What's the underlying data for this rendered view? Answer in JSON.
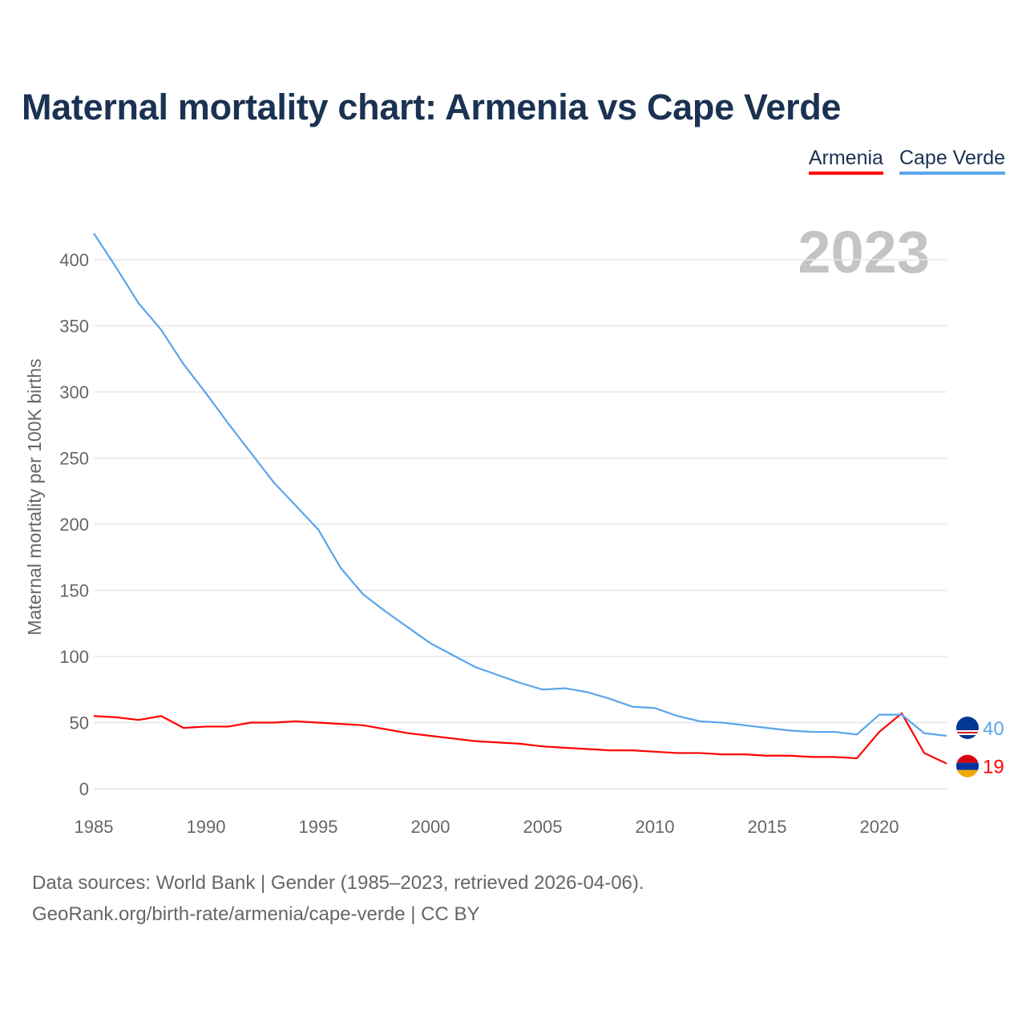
{
  "title": "Maternal mortality chart: Armenia vs Cape Verde",
  "year_label": "2023",
  "footer": {
    "line1": "Data sources: World Bank | Gender (1985–2023, retrieved 2026-04-06).",
    "line2": "GeoRank.org/birth-rate/armenia/cape-verde | CC BY"
  },
  "chart_data": {
    "type": "line",
    "title": "Maternal mortality chart: Armenia vs Cape Verde",
    "xlabel": "",
    "ylabel": "Maternal mortality per 100K births",
    "xlim": [
      1985,
      2023
    ],
    "ylim": [
      0,
      430
    ],
    "grid": true,
    "legend": "top-right",
    "x_ticks": [
      "1985",
      "1990",
      "1995",
      "2000",
      "2005",
      "2010",
      "2015",
      "2020"
    ],
    "y_ticks": [
      "0",
      "50",
      "100",
      "150",
      "200",
      "250",
      "300",
      "350",
      "400"
    ],
    "x": [
      1985,
      1986,
      1987,
      1988,
      1989,
      1990,
      1991,
      1992,
      1993,
      1994,
      1995,
      1996,
      1997,
      1998,
      1999,
      2000,
      2001,
      2002,
      2003,
      2004,
      2005,
      2006,
      2007,
      2008,
      2009,
      2010,
      2011,
      2012,
      2013,
      2014,
      2015,
      2016,
      2017,
      2018,
      2019,
      2020,
      2021,
      2022,
      2023
    ],
    "series": [
      {
        "name": "Armenia",
        "color": "#ff0000",
        "end_label": "19",
        "values": [
          55,
          54,
          52,
          55,
          46,
          47,
          47,
          50,
          50,
          51,
          50,
          49,
          48,
          45,
          42,
          40,
          38,
          36,
          35,
          34,
          32,
          31,
          30,
          29,
          29,
          28,
          27,
          27,
          26,
          26,
          25,
          25,
          24,
          24,
          23,
          43,
          57,
          27,
          19
        ]
      },
      {
        "name": "Cape Verde",
        "color": "#5aa5eb",
        "end_label": "40",
        "values": [
          420,
          394,
          367,
          347,
          321,
          299,
          276,
          254,
          232,
          214,
          196,
          167,
          147,
          134,
          122,
          110,
          101,
          92,
          86,
          80,
          75,
          76,
          73,
          68,
          62,
          61,
          55,
          51,
          50,
          48,
          46,
          44,
          43,
          43,
          41,
          56,
          56,
          42,
          40
        ]
      }
    ]
  }
}
